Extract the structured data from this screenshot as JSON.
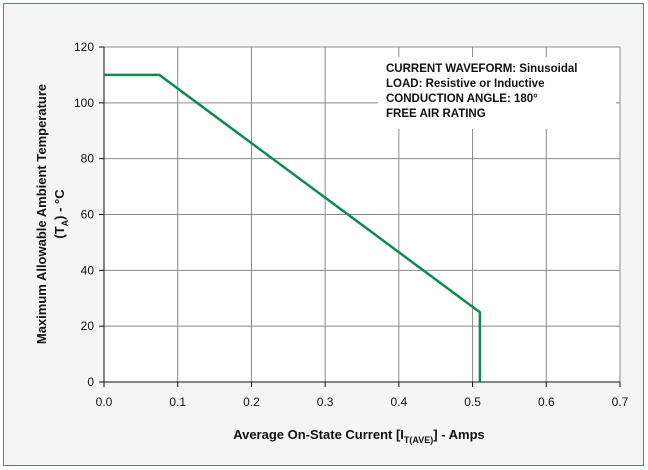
{
  "chart_data": {
    "type": "line",
    "title": "",
    "xlabel": {
      "main": "Average On-State Current [I",
      "sub": "T(AVE)",
      "suffix": "] - Amps"
    },
    "ylabel": {
      "line1": "Maximum Allowable Ambient Temperature",
      "line2_main": "(T",
      "line2_sub": "A",
      "line2_suffix": ") - °C"
    },
    "xlim": [
      0,
      0.7
    ],
    "ylim": [
      0,
      120
    ],
    "xticks": [
      "0.0",
      "0.1",
      "0.2",
      "0.3",
      "0.4",
      "0.5",
      "0.6",
      "0.7"
    ],
    "yticks": [
      "0",
      "20",
      "40",
      "60",
      "80",
      "100",
      "120"
    ],
    "grid": true,
    "series": [
      {
        "color": "#0f8a4e",
        "x": [
          0.0,
          0.075,
          0.51,
          0.51
        ],
        "y": [
          110,
          110,
          25,
          0
        ]
      }
    ],
    "annotations": [
      "CURRENT WAVEFORM: Sinusoidal",
      "LOAD: Resistive or Inductive",
      "CONDUCTION ANGLE: 180°",
      "FREE AIR RATING"
    ]
  },
  "colors": {
    "frame_border": "#2f9b66",
    "panel_background": "#f5f5f5",
    "plot_background": "#ffffff",
    "grid": "#8a8a8a",
    "curve": "#0f8a4e"
  }
}
